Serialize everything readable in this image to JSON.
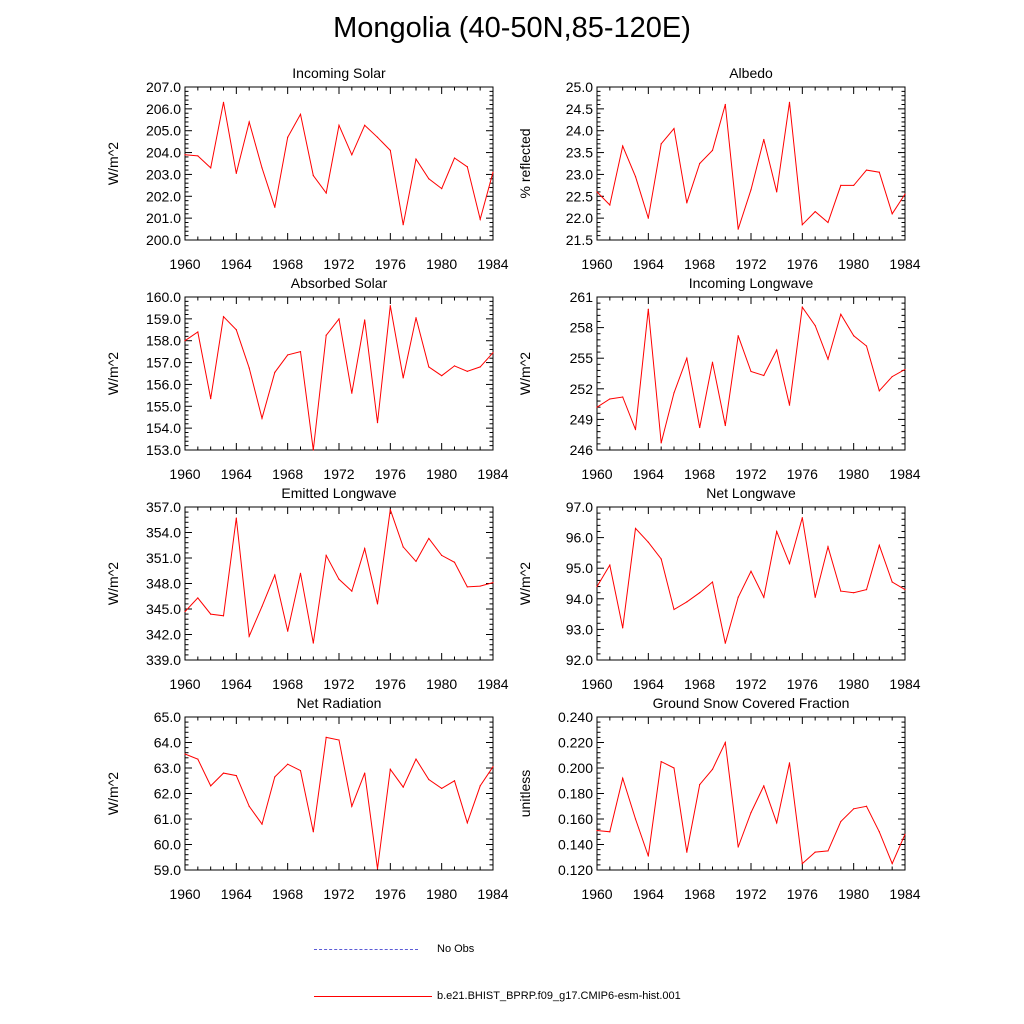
{
  "title": "Mongolia (40-50N,85-120E)",
  "legend": {
    "items": [
      {
        "label": "No Obs",
        "color": "#5b5bd6",
        "dash": true
      },
      {
        "label": "b.e21.BHIST_BPRP.f09_g17.CMIP6-esm-hist.001",
        "color": "#ff0000",
        "dash": false
      }
    ]
  },
  "chart_data": [
    {
      "type": "line",
      "title": "Incoming Solar",
      "ylabel": "W/m^2",
      "ylim": [
        200.0,
        207.0
      ],
      "yticks": [
        "200.0",
        "201.0",
        "202.0",
        "203.0",
        "204.0",
        "205.0",
        "206.0",
        "207.0"
      ],
      "xlim": [
        1960,
        1984
      ],
      "xticks": [
        "1960",
        "1964",
        "1968",
        "1972",
        "1976",
        "1980",
        "1984"
      ],
      "x": [
        1960,
        1961,
        1962,
        1963,
        1964,
        1965,
        1966,
        1967,
        1968,
        1969,
        1970,
        1971,
        1972,
        1973,
        1974,
        1975,
        1976,
        1977,
        1978,
        1979,
        1980,
        1981,
        1982,
        1983,
        1984
      ],
      "series": [
        {
          "color": "#ff0000",
          "values": [
            203.9,
            203.85,
            203.3,
            206.3,
            203.05,
            205.4,
            203.3,
            201.5,
            204.7,
            205.75,
            202.95,
            202.15,
            205.25,
            203.9,
            205.25,
            204.7,
            204.1,
            200.7,
            203.7,
            202.8,
            202.35,
            203.75,
            203.35,
            200.95,
            203.1
          ]
        }
      ]
    },
    {
      "type": "line",
      "title": "Albedo",
      "ylabel": "% reflected",
      "ylim": [
        21.5,
        25.0
      ],
      "yticks": [
        "21.5",
        "22.0",
        "22.5",
        "23.0",
        "23.5",
        "24.0",
        "24.5",
        "25.0"
      ],
      "xlim": [
        1960,
        1984
      ],
      "xticks": [
        "1960",
        "1964",
        "1968",
        "1972",
        "1976",
        "1980",
        "1984"
      ],
      "x": [
        1960,
        1961,
        1962,
        1963,
        1964,
        1965,
        1966,
        1967,
        1968,
        1969,
        1970,
        1971,
        1972,
        1973,
        1974,
        1975,
        1976,
        1977,
        1978,
        1979,
        1980,
        1981,
        1982,
        1983,
        1984
      ],
      "series": [
        {
          "color": "#ff0000",
          "values": [
            22.6,
            22.3,
            23.65,
            22.95,
            22.0,
            23.7,
            24.05,
            22.35,
            23.25,
            23.55,
            24.6,
            21.75,
            22.65,
            23.8,
            22.6,
            24.65,
            21.85,
            22.15,
            21.9,
            22.75,
            22.75,
            23.1,
            23.05,
            22.1,
            22.55
          ]
        }
      ]
    },
    {
      "type": "line",
      "title": "Absorbed Solar",
      "ylabel": "W/m^2",
      "ylim": [
        153.0,
        160.0
      ],
      "yticks": [
        "153.0",
        "154.0",
        "155.0",
        "156.0",
        "157.0",
        "158.0",
        "159.0",
        "160.0"
      ],
      "xlim": [
        1960,
        1984
      ],
      "xticks": [
        "1960",
        "1964",
        "1968",
        "1972",
        "1976",
        "1980",
        "1984"
      ],
      "x": [
        1960,
        1961,
        1962,
        1963,
        1964,
        1965,
        1966,
        1967,
        1968,
        1969,
        1970,
        1971,
        1972,
        1973,
        1974,
        1975,
        1976,
        1977,
        1978,
        1979,
        1980,
        1981,
        1982,
        1983,
        1984
      ],
      "series": [
        {
          "color": "#ff0000",
          "values": [
            158.0,
            158.4,
            155.35,
            159.1,
            158.5,
            156.75,
            154.45,
            156.55,
            157.35,
            157.5,
            153.0,
            158.25,
            159.0,
            155.6,
            158.95,
            154.25,
            159.6,
            156.3,
            159.05,
            156.8,
            156.4,
            156.85,
            156.6,
            156.8,
            157.45
          ]
        }
      ]
    },
    {
      "type": "line",
      "title": "Incoming Longwave",
      "ylabel": "W/m^2",
      "ylim": [
        246,
        261
      ],
      "yticks": [
        "246",
        "249",
        "252",
        "255",
        "258",
        "261"
      ],
      "xlim": [
        1960,
        1984
      ],
      "xticks": [
        "1960",
        "1964",
        "1968",
        "1972",
        "1976",
        "1980",
        "1984"
      ],
      "x": [
        1960,
        1961,
        1962,
        1963,
        1964,
        1965,
        1966,
        1967,
        1968,
        1969,
        1970,
        1971,
        1972,
        1973,
        1974,
        1975,
        1976,
        1977,
        1978,
        1979,
        1980,
        1981,
        1982,
        1983,
        1984
      ],
      "series": [
        {
          "color": "#ff0000",
          "values": [
            250.2,
            251.0,
            251.2,
            248.0,
            259.8,
            246.7,
            251.6,
            255.0,
            248.2,
            254.6,
            248.4,
            257.2,
            253.7,
            253.3,
            255.8,
            250.4,
            260.0,
            258.2,
            254.9,
            259.3,
            257.2,
            256.2,
            251.8,
            253.2,
            253.9
          ]
        }
      ]
    },
    {
      "type": "line",
      "title": "Emitted Longwave",
      "ylabel": "W/m^2",
      "ylim": [
        339.0,
        357.0
      ],
      "yticks": [
        "339.0",
        "342.0",
        "345.0",
        "348.0",
        "351.0",
        "354.0",
        "357.0"
      ],
      "xlim": [
        1960,
        1984
      ],
      "xticks": [
        "1960",
        "1964",
        "1968",
        "1972",
        "1976",
        "1980",
        "1984"
      ],
      "x": [
        1960,
        1961,
        1962,
        1963,
        1964,
        1965,
        1966,
        1967,
        1968,
        1969,
        1970,
        1971,
        1972,
        1973,
        1974,
        1975,
        1976,
        1977,
        1978,
        1979,
        1980,
        1981,
        1982,
        1983,
        1984
      ],
      "series": [
        {
          "color": "#ff0000",
          "values": [
            344.7,
            346.3,
            344.4,
            344.2,
            355.7,
            341.8,
            345.3,
            349.0,
            342.4,
            349.2,
            341.0,
            351.3,
            348.5,
            347.1,
            352.1,
            345.6,
            356.7,
            352.3,
            350.6,
            353.3,
            351.3,
            350.5,
            347.6,
            347.7,
            348.1
          ]
        }
      ]
    },
    {
      "type": "line",
      "title": "Net Longwave",
      "ylabel": "W/m^2",
      "ylim": [
        92.0,
        97.0
      ],
      "yticks": [
        "92.0",
        "93.0",
        "94.0",
        "95.0",
        "96.0",
        "97.0"
      ],
      "xlim": [
        1960,
        1984
      ],
      "xticks": [
        "1960",
        "1964",
        "1968",
        "1972",
        "1976",
        "1980",
        "1984"
      ],
      "x": [
        1960,
        1961,
        1962,
        1963,
        1964,
        1965,
        1966,
        1967,
        1968,
        1969,
        1970,
        1971,
        1972,
        1973,
        1974,
        1975,
        1976,
        1977,
        1978,
        1979,
        1980,
        1981,
        1982,
        1983,
        1984
      ],
      "series": [
        {
          "color": "#ff0000",
          "values": [
            94.4,
            95.1,
            93.05,
            96.3,
            95.85,
            95.3,
            93.65,
            93.9,
            94.2,
            94.55,
            92.55,
            94.05,
            94.9,
            94.05,
            96.2,
            95.15,
            96.65,
            94.05,
            95.7,
            94.25,
            94.2,
            94.3,
            95.75,
            94.55,
            94.3
          ]
        }
      ]
    },
    {
      "type": "line",
      "title": "Net Radiation",
      "ylabel": "W/m^2",
      "ylim": [
        59.0,
        65.0
      ],
      "yticks": [
        "59.0",
        "60.0",
        "61.0",
        "62.0",
        "63.0",
        "64.0",
        "65.0"
      ],
      "xlim": [
        1960,
        1984
      ],
      "xticks": [
        "1960",
        "1964",
        "1968",
        "1972",
        "1976",
        "1980",
        "1984"
      ],
      "x": [
        1960,
        1961,
        1962,
        1963,
        1964,
        1965,
        1966,
        1967,
        1968,
        1969,
        1970,
        1971,
        1972,
        1973,
        1974,
        1975,
        1976,
        1977,
        1978,
        1979,
        1980,
        1981,
        1982,
        1983,
        1984
      ],
      "series": [
        {
          "color": "#ff0000",
          "values": [
            63.55,
            63.35,
            62.3,
            62.8,
            62.7,
            61.5,
            60.8,
            62.65,
            63.15,
            62.9,
            60.5,
            64.2,
            64.1,
            61.5,
            62.8,
            59.05,
            62.95,
            62.25,
            63.35,
            62.55,
            62.2,
            62.5,
            60.85,
            62.3,
            63.05
          ]
        }
      ]
    },
    {
      "type": "line",
      "title": "Ground Snow Covered Fraction",
      "ylabel": "unitless",
      "ylim": [
        0.12,
        0.24
      ],
      "yticks": [
        "0.120",
        "0.140",
        "0.160",
        "0.180",
        "0.200",
        "0.220",
        "0.240"
      ],
      "xlim": [
        1960,
        1984
      ],
      "xticks": [
        "1960",
        "1964",
        "1968",
        "1972",
        "1976",
        "1980",
        "1984"
      ],
      "x": [
        1960,
        1961,
        1962,
        1963,
        1964,
        1965,
        1966,
        1967,
        1968,
        1969,
        1970,
        1971,
        1972,
        1973,
        1974,
        1975,
        1976,
        1977,
        1978,
        1979,
        1980,
        1981,
        1982,
        1983,
        1984
      ],
      "series": [
        {
          "color": "#ff0000",
          "values": [
            0.151,
            0.15,
            0.192,
            0.16,
            0.131,
            0.205,
            0.2,
            0.134,
            0.187,
            0.199,
            0.22,
            0.138,
            0.165,
            0.186,
            0.157,
            0.204,
            0.125,
            0.134,
            0.135,
            0.158,
            0.168,
            0.17,
            0.15,
            0.125,
            0.148
          ]
        }
      ]
    }
  ]
}
